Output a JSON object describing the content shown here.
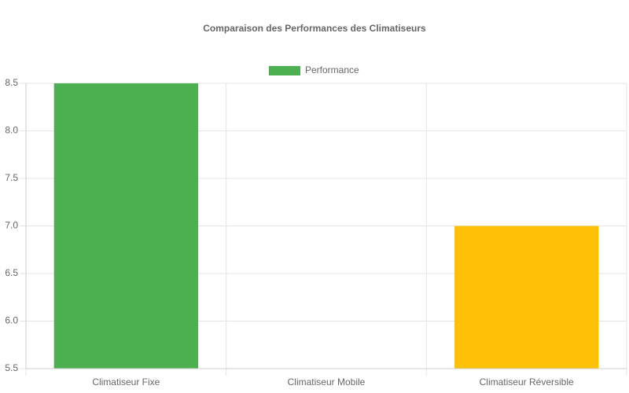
{
  "chart_data": {
    "type": "bar",
    "title": "Comparaison des Performances des Climatiseurs",
    "categories": [
      "Climatiseur Fixe",
      "Climatiseur Mobile",
      "Climatiseur Réversible"
    ],
    "series": [
      {
        "name": "Performance",
        "colors": [
          "#4caf50",
          "#2196f3",
          "#ffc107"
        ],
        "values": [
          8.5,
          5.5,
          7.0
        ]
      }
    ],
    "ylim": [
      5.5,
      8.5
    ],
    "yticks": [
      {
        "value": 5.5,
        "label": "5.5"
      },
      {
        "value": 6,
        "label": "6.0"
      },
      {
        "value": 6.5,
        "label": "6.5"
      },
      {
        "value": 7,
        "label": "7.0"
      },
      {
        "value": 7.5,
        "label": "7.5"
      },
      {
        "value": 8,
        "label": "8.0"
      },
      {
        "value": 8.5,
        "label": "8.5"
      }
    ],
    "grid": true
  }
}
